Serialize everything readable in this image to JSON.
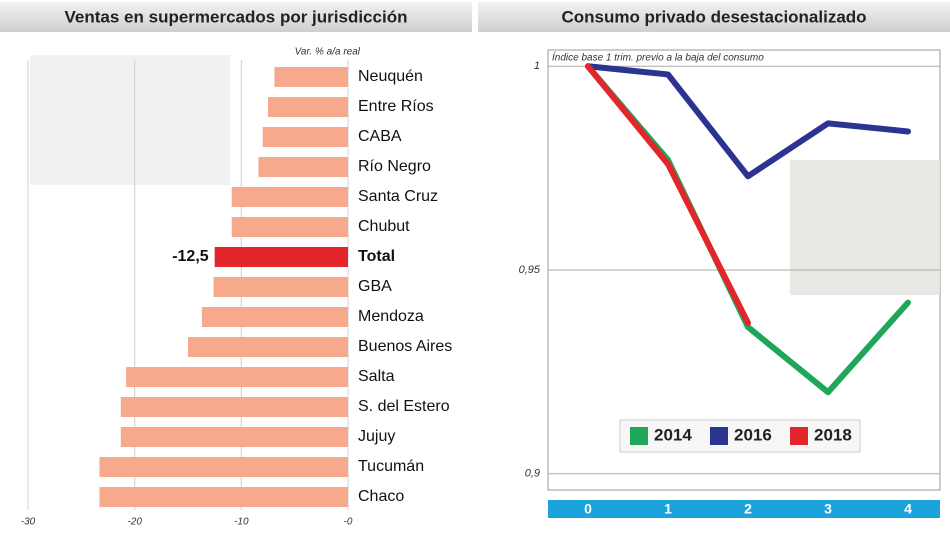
{
  "chart_data": [
    {
      "type": "bar",
      "orientation": "horizontal",
      "title": "Ventas en supermercados por jurisdicción",
      "subtitle": "Var. % a/a real",
      "categories": [
        "Neuquén",
        "Entre Ríos",
        "CABA",
        "Río Negro",
        "Santa Cruz",
        "Chubut",
        "Total",
        "GBA",
        "Mendoza",
        "Buenos Aires",
        "Salta",
        "S. del Estero",
        "Jujuy",
        "Tucumán",
        "Chaco"
      ],
      "values": [
        -6.9,
        -7.5,
        -8.0,
        -8.4,
        -10.9,
        -10.9,
        -12.5,
        -12.6,
        -13.7,
        -15.0,
        -20.8,
        -21.3,
        -21.3,
        -23.3,
        -23.3
      ],
      "value_labels": [
        null,
        null,
        null,
        null,
        null,
        null,
        "-12,5",
        null,
        null,
        null,
        null,
        null,
        null,
        null,
        null
      ],
      "colors": [
        "#f6a98c",
        "#f6a98c",
        "#f6a98c",
        "#f6a98c",
        "#f6a98c",
        "#f6a98c",
        "#e3262b",
        "#f6a98c",
        "#f6a98c",
        "#f6a98c",
        "#f6a98c",
        "#f6a98c",
        "#f6a98c",
        "#f6a98c",
        "#f6a98c"
      ],
      "xlim": [
        -30,
        0
      ],
      "xticks": [
        -30,
        -20,
        -10,
        {
          "value": 0,
          "label": "-0"
        }
      ],
      "grid": true
    },
    {
      "type": "line",
      "title": "Consumo privado desestacionalizado",
      "subtitle": "Índice base 1 trim. previo a la baja del consumo",
      "x": [
        0,
        1,
        2,
        3,
        4
      ],
      "xlim": [
        -0.5,
        4.4
      ],
      "series": [
        {
          "name": "2014",
          "color": "#1ea65a",
          "values": [
            1,
            0.977,
            0.936,
            0.92,
            0.942
          ]
        },
        {
          "name": "2016",
          "color": "#2b3491",
          "values": [
            1,
            0.998,
            0.973,
            0.986,
            0.984
          ]
        },
        {
          "name": "2018",
          "color": "#e3262b",
          "values": [
            1,
            0.976,
            0.937,
            null,
            null
          ]
        }
      ],
      "ylim": [
        0.896,
        1.004
      ],
      "yticks": [
        {
          "value": 0.9,
          "label": "0,9"
        },
        {
          "value": 0.95,
          "label": "0,95"
        },
        1
      ],
      "grid": true,
      "legend": "bottom"
    }
  ]
}
